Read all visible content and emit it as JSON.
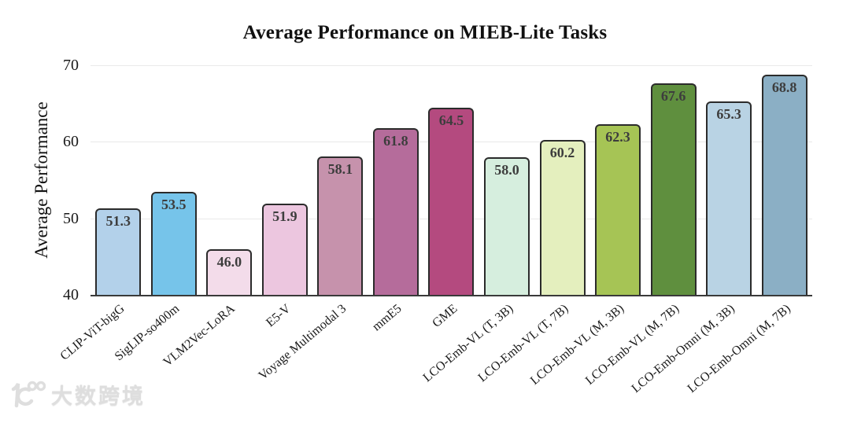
{
  "chart_data": {
    "type": "bar",
    "title": "Average Performance on MIEB-Lite Tasks",
    "ylabel": "Average Performance",
    "xlabel": "",
    "ylim": [
      40,
      70
    ],
    "yticks": [
      40,
      50,
      60,
      70
    ],
    "grid": "horizontal",
    "legend": "none",
    "categories": [
      "CLIP-ViT-bigG",
      "SigLIP-so400m",
      "VLM2Vec-LoRA",
      "E5-V",
      "Voyage Multimodal 3",
      "mmE5",
      "GME",
      "LCO-Emb-VL (T, 3B)",
      "LCO-Emb-VL (T, 7B)",
      "LCO-Emb-VL (M, 3B)",
      "LCO-Emb-VL (M, 7B)",
      "LCO-Emb-Omni (M, 3B)",
      "LCO-Emb-Omni (M, 7B)"
    ],
    "values": [
      51.3,
      53.5,
      46.0,
      51.9,
      58.1,
      61.8,
      64.5,
      58.0,
      60.2,
      62.3,
      67.6,
      65.3,
      68.8
    ],
    "value_labels": [
      "51.3",
      "53.5",
      "46.0",
      "51.9",
      "58.1",
      "61.8",
      "64.5",
      "58.0",
      "60.2",
      "62.3",
      "67.6",
      "65.3",
      "68.8"
    ],
    "bar_colors": [
      "#b3d1ea",
      "#76c4ea",
      "#f3dcea",
      "#ecc6df",
      "#c692ac",
      "#b56c9b",
      "#b44a7f",
      "#d6eede",
      "#e4efbe",
      "#a6c455",
      "#5f8f3e",
      "#b9d3e4",
      "#8bafc5"
    ],
    "bar_border_color": "#2b2b2b",
    "value_label_color": "#3d3d3d",
    "gridline_color": "#e9e9e9",
    "axis_color": "#3a3a3a"
  },
  "watermark": {
    "logo": "k100-logo",
    "text": "大数跨境"
  }
}
